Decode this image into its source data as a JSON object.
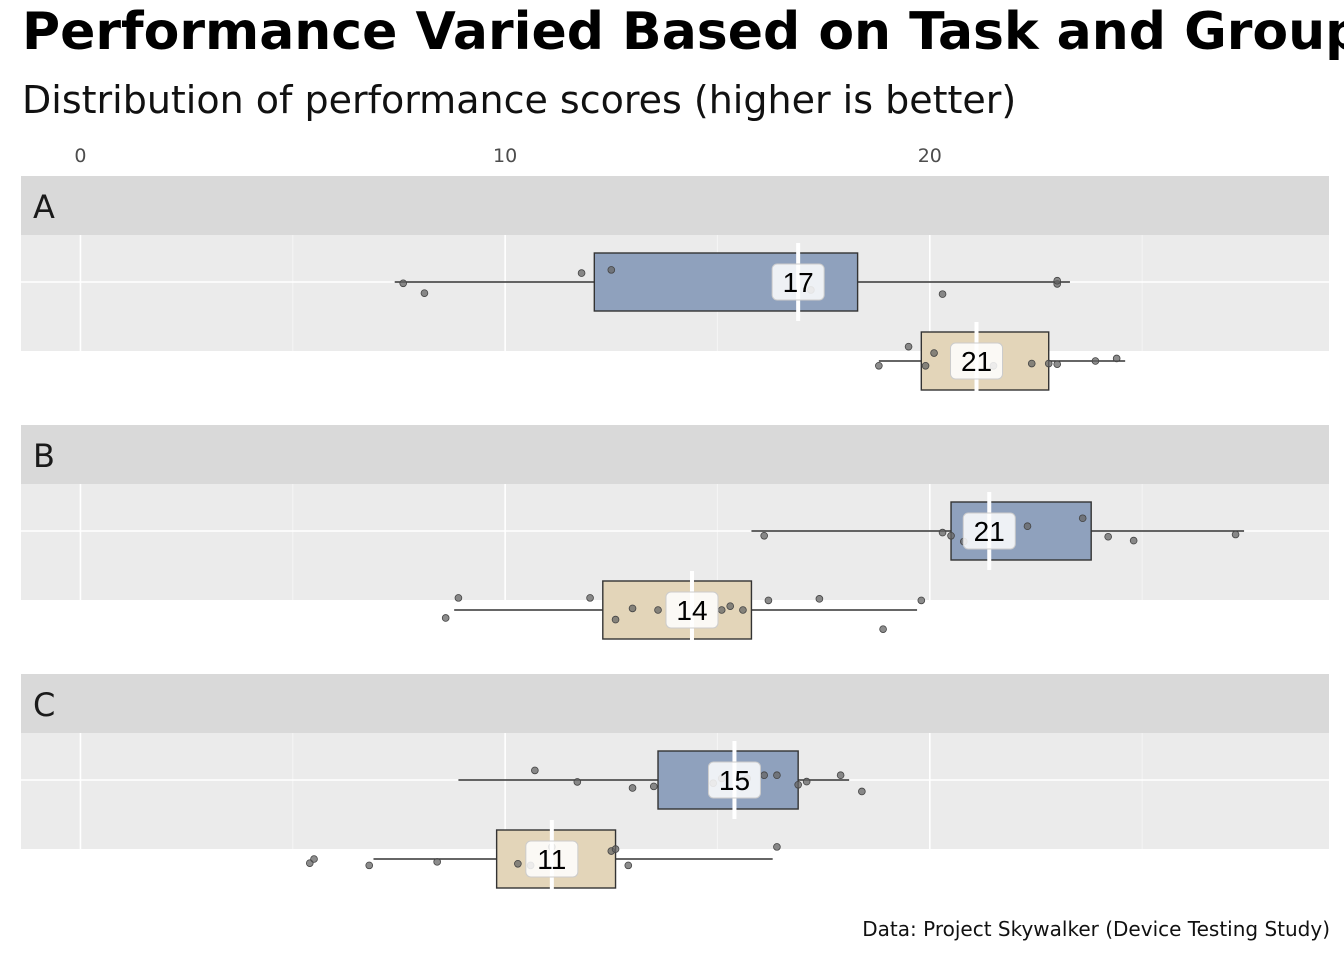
{
  "chart_data": {
    "type": "boxplot",
    "title": "Performance Varied Based on Task and Group",
    "subtitle": "Distribution of performance scores (higher is better)",
    "caption": "Data: Project Skywalker (Device Testing Study)",
    "xlim": [
      -1.4,
      29.4
    ],
    "x_ticks": [
      0,
      10,
      20
    ],
    "x_axis_position": "top",
    "grid": true,
    "colors": {
      "group_1": "#8fa1bd",
      "group_2": "#e3d5b9",
      "panel": "#ebebeb",
      "strip": "#d9d9d9"
    },
    "panels": [
      {
        "label": "A",
        "boxes": [
          {
            "color": "#8fa1bd",
            "whisker_low": 7.4,
            "q1": 12.1,
            "median": 16.9,
            "q3": 18.3,
            "whisker_high": 23.3,
            "points": [
              [
                8.1,
                0.35
              ],
              [
                7.6,
                0.04
              ],
              [
                11.8,
                -0.28
              ],
              [
                12.5,
                -0.38
              ],
              [
                17.2,
                0.25
              ],
              [
                20.3,
                0.38
              ],
              [
                23.0,
                0.06
              ],
              [
                23.0,
                -0.04
              ]
            ]
          },
          {
            "color": "#e3d5b9",
            "whisker_low": 18.8,
            "q1": 19.8,
            "median": 21.1,
            "q3": 22.8,
            "whisker_high": 24.6,
            "points": [
              [
                18.8,
                0.15
              ],
              [
                19.5,
                -0.45
              ],
              [
                19.9,
                0.15
              ],
              [
                20.1,
                -0.25
              ],
              [
                21.5,
                0.15
              ],
              [
                22.4,
                0.08
              ],
              [
                22.8,
                0.08
              ],
              [
                23.0,
                0.1
              ],
              [
                23.9,
                0.0
              ],
              [
                24.4,
                -0.08
              ]
            ]
          }
        ]
      },
      {
        "label": "B",
        "boxes": [
          {
            "color": "#8fa1bd",
            "whisker_low": 15.8,
            "q1": 20.5,
            "median": 21.4,
            "q3": 23.8,
            "whisker_high": 27.4,
            "points": [
              [
                16.1,
                0.15
              ],
              [
                20.3,
                0.05
              ],
              [
                20.5,
                0.15
              ],
              [
                20.8,
                0.33
              ],
              [
                22.3,
                -0.15
              ],
              [
                23.6,
                -0.4
              ],
              [
                24.2,
                0.18
              ],
              [
                24.8,
                0.3
              ],
              [
                27.2,
                0.11
              ]
            ]
          },
          {
            "color": "#e3d5b9",
            "whisker_low": 8.8,
            "q1": 12.3,
            "median": 14.4,
            "q3": 15.8,
            "whisker_high": 19.7,
            "points": [
              [
                8.6,
                0.25
              ],
              [
                8.9,
                -0.38
              ],
              [
                12.0,
                -0.38
              ],
              [
                12.6,
                0.3
              ],
              [
                13.6,
                0.0
              ],
              [
                15.1,
                0.0
              ],
              [
                15.3,
                -0.12
              ],
              [
                15.6,
                0.0
              ],
              [
                16.2,
                -0.3
              ],
              [
                17.4,
                -0.35
              ],
              [
                18.9,
                0.6
              ],
              [
                19.8,
                -0.3
              ],
              [
                13.0,
                -0.05
              ]
            ]
          }
        ]
      },
      {
        "label": "C",
        "boxes": [
          {
            "color": "#8fa1bd",
            "whisker_low": 8.9,
            "q1": 13.6,
            "median": 15.4,
            "q3": 16.9,
            "whisker_high": 18.1,
            "points": [
              [
                11.7,
                0.06
              ],
              [
                13.0,
                0.25
              ],
              [
                13.5,
                0.2
              ],
              [
                14.9,
                0.1
              ],
              [
                15.1,
                -0.05
              ],
              [
                15.7,
                -0.05
              ],
              [
                16.1,
                -0.15
              ],
              [
                16.4,
                -0.15
              ],
              [
                16.9,
                0.15
              ],
              [
                17.1,
                0.05
              ],
              [
                17.9,
                -0.15
              ],
              [
                18.4,
                0.36
              ],
              [
                10.7,
                -0.3
              ]
            ]
          },
          {
            "color": "#e3d5b9",
            "whisker_low": 6.9,
            "q1": 9.8,
            "median": 11.1,
            "q3": 12.6,
            "whisker_high": 16.3,
            "points": [
              [
                5.4,
                0.13
              ],
              [
                5.5,
                0.0
              ],
              [
                6.8,
                0.2
              ],
              [
                8.4,
                0.09
              ],
              [
                10.3,
                0.15
              ],
              [
                10.6,
                0.2
              ],
              [
                11.1,
                -0.38
              ],
              [
                12.5,
                -0.25
              ],
              [
                12.6,
                -0.31
              ],
              [
                12.9,
                0.2
              ],
              [
                16.4,
                -0.38
              ]
            ]
          }
        ]
      }
    ]
  }
}
